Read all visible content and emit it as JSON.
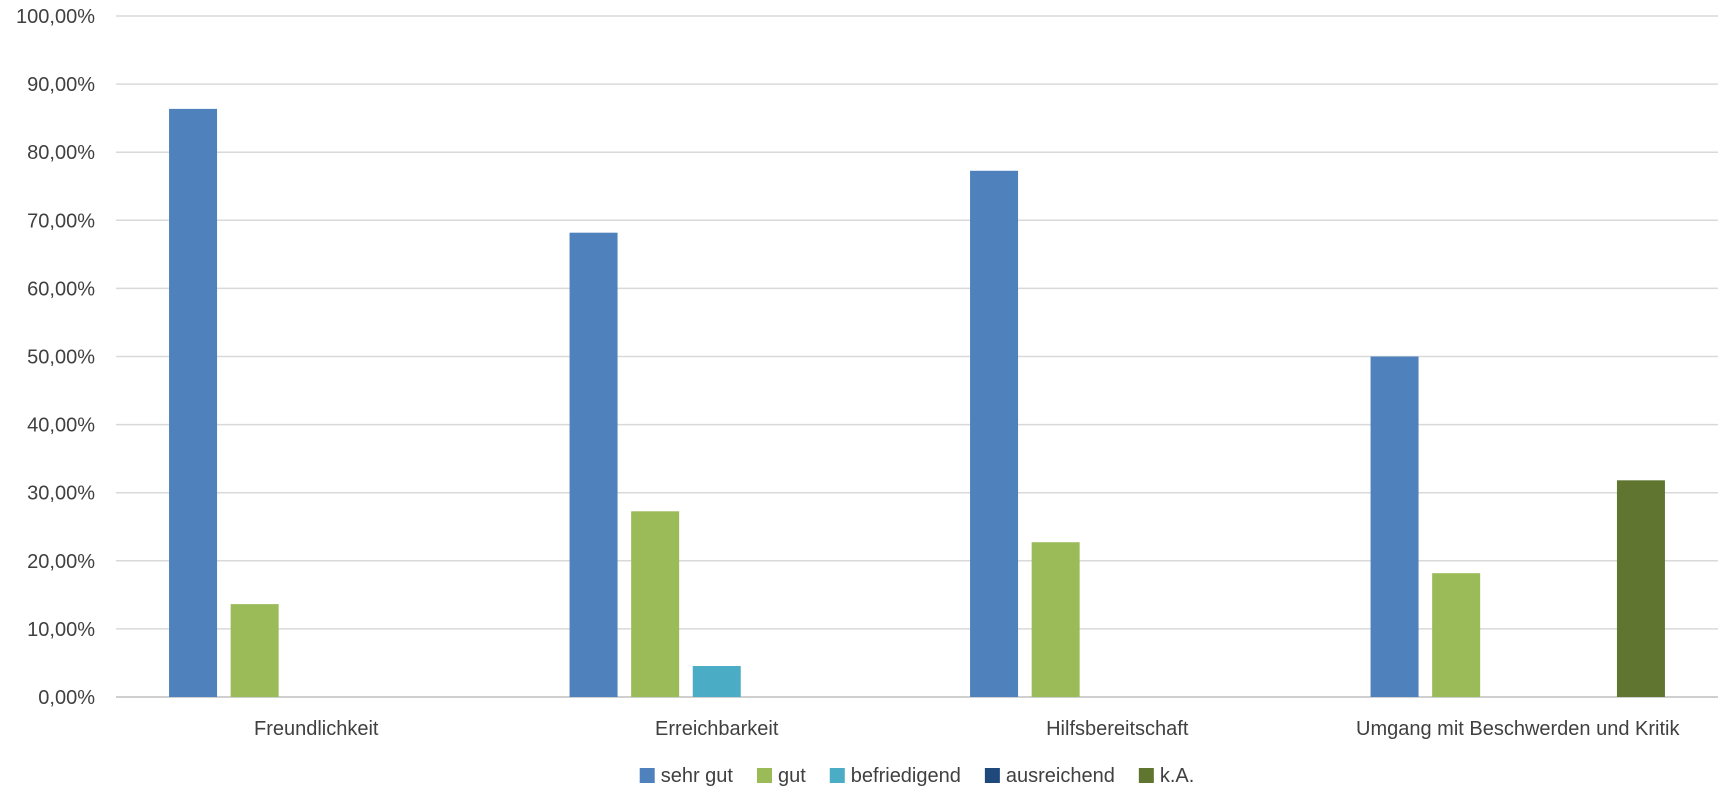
{
  "chart_data": {
    "type": "bar",
    "title": "",
    "xlabel": "",
    "ylabel": "",
    "categories": [
      "Freundlichkeit",
      "Erreichbarkeit",
      "Hilfsbereitschaft",
      "Umgang mit Beschwerden und Kritik"
    ],
    "series": [
      {
        "name": "sehr gut",
        "color": "#4F81BD",
        "values": [
          86.36,
          68.18,
          77.27,
          50.0
        ]
      },
      {
        "name": "gut",
        "color": "#9BBB59",
        "values": [
          13.64,
          27.27,
          22.73,
          18.18
        ]
      },
      {
        "name": "befriedigend",
        "color": "#4BACC6",
        "values": [
          0,
          4.55,
          0,
          0
        ]
      },
      {
        "name": "ausreichend",
        "color": "#1F497D",
        "values": [
          0,
          0,
          0,
          0
        ]
      },
      {
        "name": "k.A.",
        "color": "#5F7530",
        "values": [
          0,
          0,
          0,
          31.82
        ]
      }
    ],
    "ylim": [
      0,
      100
    ],
    "yticks": [
      0,
      10,
      20,
      30,
      40,
      50,
      60,
      70,
      80,
      90,
      100
    ],
    "ytick_labels": [
      "0,00%",
      "10,00%",
      "20,00%",
      "30,00%",
      "40,00%",
      "50,00%",
      "60,00%",
      "70,00%",
      "80,00%",
      "90,00%",
      "100,00%"
    ],
    "grid": true,
    "legend_position": "bottom-center"
  }
}
